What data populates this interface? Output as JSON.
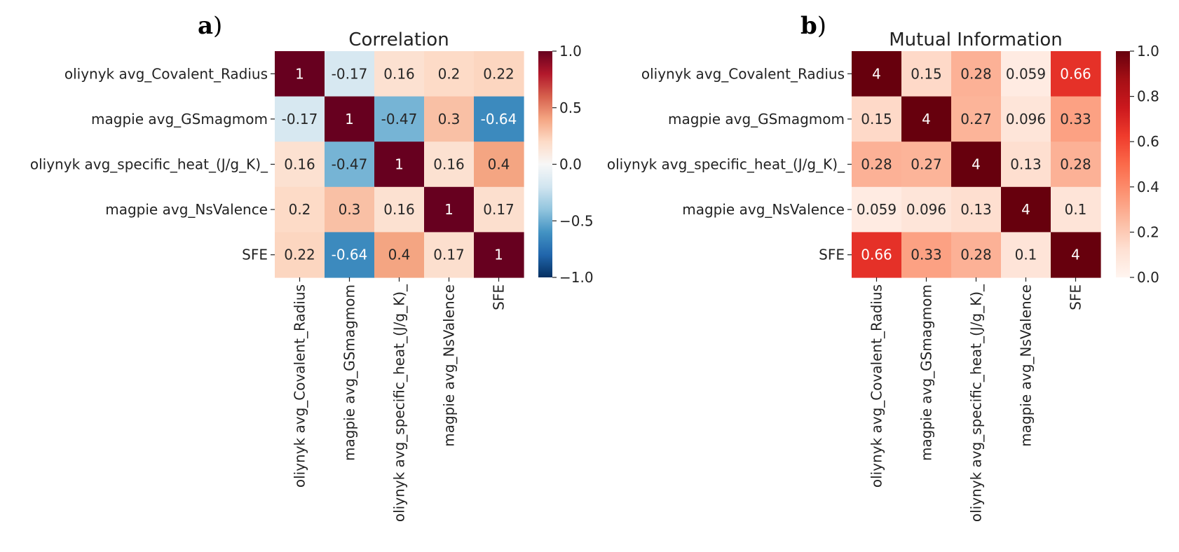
{
  "chart_data": [
    {
      "type": "heatmap",
      "panel_label": "a",
      "panel_paren": ")",
      "title": "Correlation",
      "colormap": "RdBu_r",
      "vmin": -1.0,
      "vmax": 1.0,
      "row_labels": [
        "oliynyk avg_Covalent_Radius",
        "magpie avg_GSmagmom",
        "oliynyk avg_specific_heat_(J/g_K)_",
        "magpie avg_NsValence",
        "SFE"
      ],
      "col_labels": [
        "oliynyk avg_Covalent_Radius",
        "magpie avg_GSmagmom",
        "oliynyk avg_specific_heat_(J/g_K)_",
        "magpie avg_NsValence",
        "SFE"
      ],
      "values": [
        [
          1,
          -0.17,
          0.16,
          0.2,
          0.22
        ],
        [
          -0.17,
          1,
          -0.47,
          0.3,
          -0.64
        ],
        [
          0.16,
          -0.47,
          1,
          0.16,
          0.4
        ],
        [
          0.2,
          0.3,
          0.16,
          1,
          0.17
        ],
        [
          0.22,
          -0.64,
          0.4,
          0.17,
          1
        ]
      ],
      "cell_labels": [
        [
          "1",
          "-0.17",
          "0.16",
          "0.2",
          "0.22"
        ],
        [
          "-0.17",
          "1",
          "-0.47",
          "0.3",
          "-0.64"
        ],
        [
          "0.16",
          "-0.47",
          "1",
          "0.16",
          "0.4"
        ],
        [
          "0.2",
          "0.3",
          "0.16",
          "1",
          "0.17"
        ],
        [
          "0.22",
          "-0.64",
          "0.4",
          "0.17",
          "1"
        ]
      ],
      "colorbar_ticks": [
        1.0,
        0.5,
        0.0,
        -0.5,
        -1.0
      ],
      "colorbar_tick_labels": [
        "1.0",
        "0.5",
        "0.0",
        "−0.5",
        "−1.0"
      ]
    },
    {
      "type": "heatmap",
      "panel_label": "b",
      "panel_paren": ")",
      "title": "Mutual Information",
      "colormap": "Reds",
      "vmin": 0.0,
      "vmax": 1.0,
      "row_labels": [
        "oliynyk avg_Covalent_Radius",
        "magpie avg_GSmagmom",
        "oliynyk avg_specific_heat_(J/g_K)_",
        "magpie avg_NsValence",
        "SFE"
      ],
      "col_labels": [
        "oliynyk avg_Covalent_Radius",
        "magpie avg_GSmagmom",
        "oliynyk avg_specific_heat_(J/g_K)_",
        "magpie avg_NsValence",
        "SFE"
      ],
      "values": [
        [
          4,
          0.15,
          0.28,
          0.059,
          0.66
        ],
        [
          0.15,
          4,
          0.27,
          0.096,
          0.33
        ],
        [
          0.28,
          0.27,
          4,
          0.13,
          0.28
        ],
        [
          0.059,
          0.096,
          0.13,
          4,
          0.1
        ],
        [
          0.66,
          0.33,
          0.28,
          0.1,
          4
        ]
      ],
      "cell_labels": [
        [
          "4",
          "0.15",
          "0.28",
          "0.059",
          "0.66"
        ],
        [
          "0.15",
          "4",
          "0.27",
          "0.096",
          "0.33"
        ],
        [
          "0.28",
          "0.27",
          "4",
          "0.13",
          "0.28"
        ],
        [
          "0.059",
          "0.096",
          "0.13",
          "4",
          "0.1"
        ],
        [
          "0.66",
          "0.33",
          "0.28",
          "0.1",
          "4"
        ]
      ],
      "colorbar_ticks": [
        1.0,
        0.8,
        0.6,
        0.4,
        0.2,
        0.0
      ],
      "colorbar_tick_labels": [
        "1.0",
        "0.8",
        "0.6",
        "0.4",
        "0.2",
        "0.0"
      ]
    }
  ]
}
